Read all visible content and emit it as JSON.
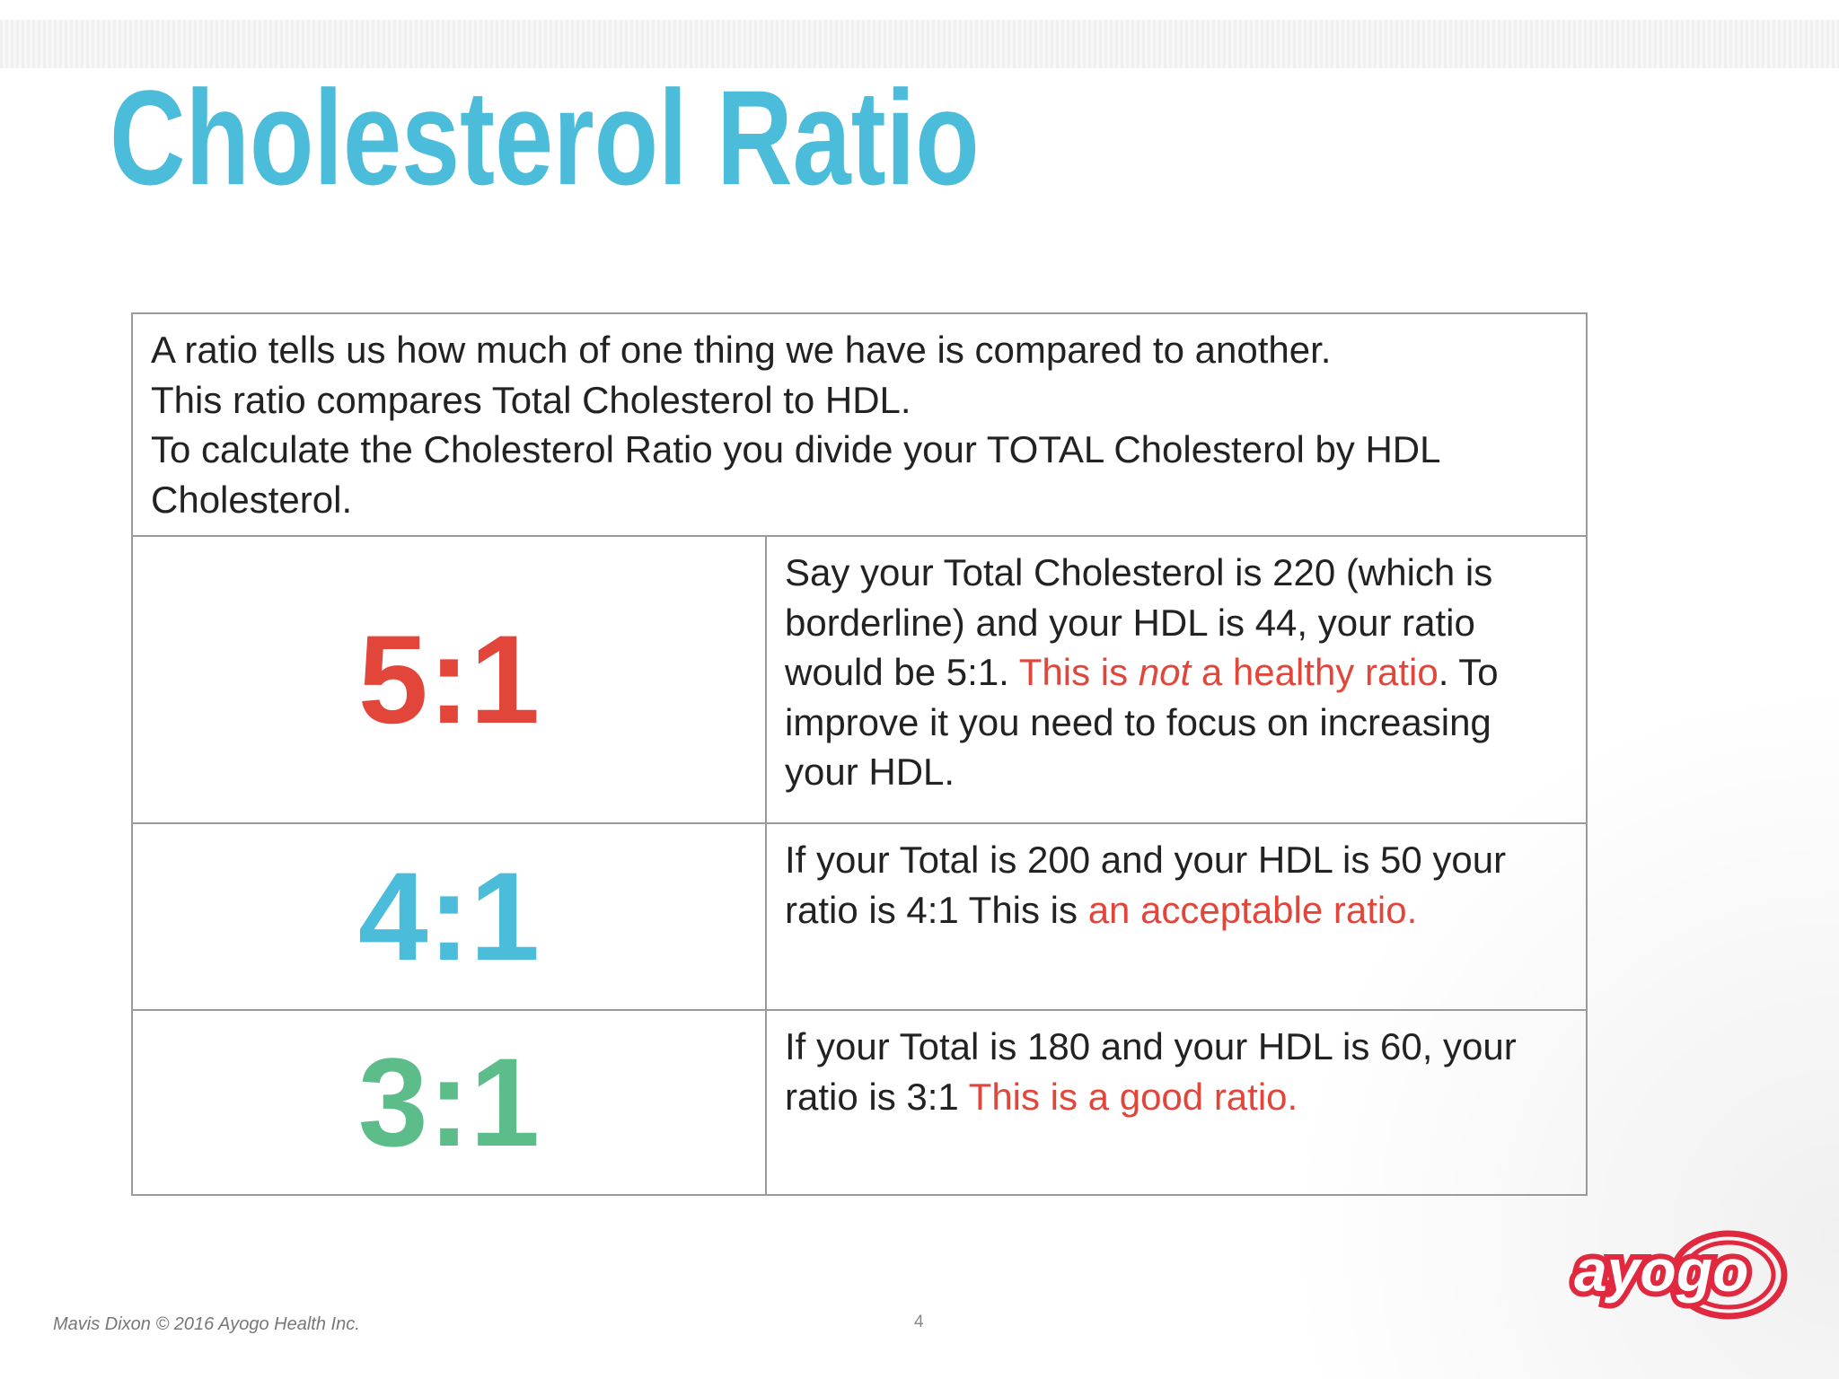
{
  "title": "Cholesterol Ratio",
  "title_color": "#4bbcd9",
  "table": {
    "intro": [
      "A ratio tells us how much of one thing we have is compared to another.",
      "This ratio compares Total Cholesterol to HDL.",
      "To calculate the Cholesterol Ratio you divide your TOTAL Cholesterol by HDL Cholesterol."
    ],
    "rows": [
      {
        "ratio": "5:1",
        "color": "#e2463a",
        "text": [
          {
            "text": "Say your Total Cholesterol is 220 (which is borderline) and your HDL is 44, your ratio would be 5:1. "
          },
          {
            "text": "This is ",
            "color": "#e2463a"
          },
          {
            "text": "not",
            "color": "#e2463a",
            "italic": true
          },
          {
            "text": " a healthy ratio",
            "color": "#e2463a"
          },
          {
            "text": ". To improve it you need to focus on increasing your HDL."
          }
        ]
      },
      {
        "ratio": "4:1",
        "color": "#4bbcd9",
        "text": [
          {
            "text": "If your Total is 200 and your HDL is 50 your ratio is 4:1 This is "
          },
          {
            "text": "an acceptable ratio.",
            "color": "#e2463a"
          }
        ]
      },
      {
        "ratio": "3:1",
        "color": "#5dbd8a",
        "text": [
          {
            "text": "If your Total is 180 and your HDL is 60, your ratio is 3:1 "
          },
          {
            "text": "This is a good ratio.",
            "color": "#e2463a"
          }
        ]
      }
    ]
  },
  "footer": {
    "credit": "Mavis Dixon © 2016 Ayogo Health Inc.",
    "page": 4
  },
  "logo": {
    "text": "ayogo",
    "color": "#e0293f"
  }
}
